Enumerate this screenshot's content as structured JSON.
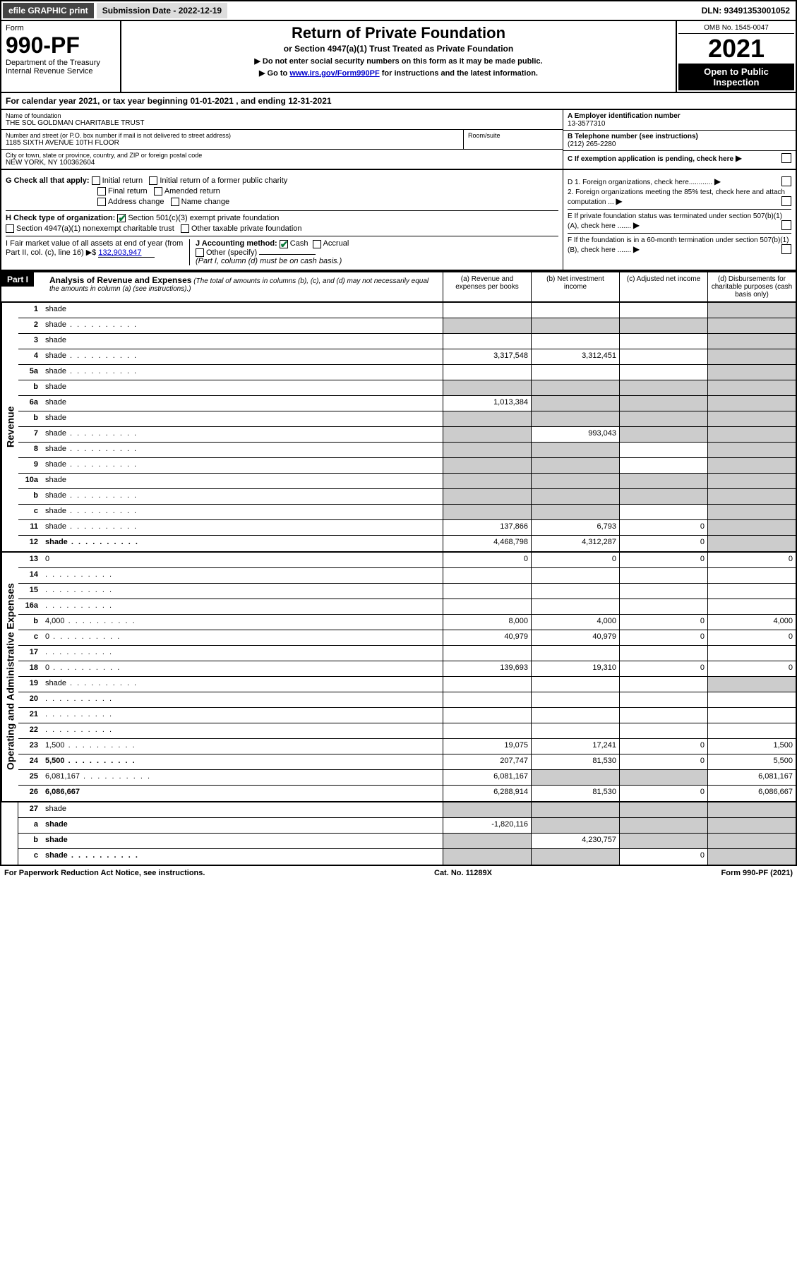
{
  "topbar": {
    "efile": "efile GRAPHIC print",
    "submission_label": "Submission Date - 2022-12-19",
    "dln": "DLN: 93491353001052"
  },
  "header": {
    "form_word": "Form",
    "form_number": "990-PF",
    "dept": "Department of the Treasury",
    "irs": "Internal Revenue Service",
    "title": "Return of Private Foundation",
    "subtitle": "or Section 4947(a)(1) Trust Treated as Private Foundation",
    "note1": "▶ Do not enter social security numbers on this form as it may be made public.",
    "note2_pre": "▶ Go to ",
    "note2_link": "www.irs.gov/Form990PF",
    "note2_post": " for instructions and the latest information.",
    "omb": "OMB No. 1545-0047",
    "year": "2021",
    "open": "Open to Public Inspection"
  },
  "calyear": {
    "text_pre": "For calendar year 2021, or tax year beginning ",
    "begin": "01-01-2021",
    "text_mid": " , and ending ",
    "end": "12-31-2021"
  },
  "info": {
    "name_label": "Name of foundation",
    "name": "THE SOL GOLDMAN CHARITABLE TRUST",
    "addr_label": "Number and street (or P.O. box number if mail is not delivered to street address)",
    "addr": "1185 SIXTH AVENUE 10TH FLOOR",
    "room_label": "Room/suite",
    "city_label": "City or town, state or province, country, and ZIP or foreign postal code",
    "city": "NEW YORK, NY  100362604",
    "ein_label": "A Employer identification number",
    "ein": "13-3577310",
    "phone_label": "B Telephone number (see instructions)",
    "phone": "(212) 265-2280",
    "c_label": "C If exemption application is pending, check here",
    "d1": "D 1. Foreign organizations, check here............",
    "d2": "2. Foreign organizations meeting the 85% test, check here and attach computation ...",
    "e": "E  If private foundation status was terminated under section 507(b)(1)(A), check here .......",
    "f": "F  If the foundation is in a 60-month termination under section 507(b)(1)(B), check here .......",
    "g_label": "G Check all that apply:",
    "g_opts": [
      "Initial return",
      "Initial return of a former public charity",
      "Final return",
      "Amended return",
      "Address change",
      "Name change"
    ],
    "h_label": "H Check type of organization:",
    "h1": "Section 501(c)(3) exempt private foundation",
    "h2": "Section 4947(a)(1) nonexempt charitable trust",
    "h3": "Other taxable private foundation",
    "i_label": "I Fair market value of all assets at end of year (from Part II, col. (c), line 16) ▶$",
    "i_value": "132,903,947",
    "j_label": "J Accounting method:",
    "j_cash": "Cash",
    "j_accrual": "Accrual",
    "j_other": "Other (specify)",
    "j_note": "(Part I, column (d) must be on cash basis.)"
  },
  "part1": {
    "label": "Part I",
    "title": "Analysis of Revenue and Expenses",
    "note": "(The total of amounts in columns (b), (c), and (d) may not necessarily equal the amounts in column (a) (see instructions).)",
    "cols": {
      "a": "(a) Revenue and expenses per books",
      "b": "(b) Net investment income",
      "c": "(c) Adjusted net income",
      "d": "(d) Disbursements for charitable purposes (cash basis only)"
    }
  },
  "side": {
    "revenue": "Revenue",
    "expenses": "Operating and Administrative Expenses"
  },
  "lines": [
    {
      "n": "1",
      "d": "shade",
      "a": "",
      "b": "",
      "c": ""
    },
    {
      "n": "2",
      "d": "shade",
      "a": "shade",
      "b": "shade",
      "c": "shade",
      "dots": true
    },
    {
      "n": "3",
      "d": "shade",
      "a": "",
      "b": "",
      "c": ""
    },
    {
      "n": "4",
      "d": "shade",
      "a": "3,317,548",
      "b": "3,312,451",
      "c": "",
      "dots": true
    },
    {
      "n": "5a",
      "d": "shade",
      "a": "",
      "b": "",
      "c": "",
      "dots": true
    },
    {
      "n": "b",
      "d": "shade",
      "a": "shade",
      "b": "shade",
      "c": "shade"
    },
    {
      "n": "6a",
      "d": "shade",
      "a": "1,013,384",
      "b": "shade",
      "c": "shade"
    },
    {
      "n": "b",
      "d": "shade",
      "a": "shade",
      "b": "shade",
      "c": "shade"
    },
    {
      "n": "7",
      "d": "shade",
      "a": "shade",
      "b": "993,043",
      "c": "shade",
      "dots": true
    },
    {
      "n": "8",
      "d": "shade",
      "a": "shade",
      "b": "shade",
      "c": "",
      "dots": true
    },
    {
      "n": "9",
      "d": "shade",
      "a": "shade",
      "b": "shade",
      "c": "",
      "dots": true
    },
    {
      "n": "10a",
      "d": "shade",
      "a": "shade",
      "b": "shade",
      "c": "shade"
    },
    {
      "n": "b",
      "d": "shade",
      "a": "shade",
      "b": "shade",
      "c": "shade",
      "dots": true
    },
    {
      "n": "c",
      "d": "shade",
      "a": "shade",
      "b": "shade",
      "c": "",
      "dots": true
    },
    {
      "n": "11",
      "d": "shade",
      "a": "137,866",
      "b": "6,793",
      "c": "0",
      "dots": true
    },
    {
      "n": "12",
      "d": "shade",
      "a": "4,468,798",
      "b": "4,312,287",
      "c": "0",
      "bold": true,
      "dots": true
    }
  ],
  "exp_lines": [
    {
      "n": "13",
      "d": "0",
      "a": "0",
      "b": "0",
      "c": "0"
    },
    {
      "n": "14",
      "d": "",
      "a": "",
      "b": "",
      "c": "",
      "dots": true
    },
    {
      "n": "15",
      "d": "",
      "a": "",
      "b": "",
      "c": "",
      "dots": true
    },
    {
      "n": "16a",
      "d": "",
      "a": "",
      "b": "",
      "c": "",
      "dots": true
    },
    {
      "n": "b",
      "d": "4,000",
      "a": "8,000",
      "b": "4,000",
      "c": "0",
      "dots": true
    },
    {
      "n": "c",
      "d": "0",
      "a": "40,979",
      "b": "40,979",
      "c": "0",
      "dots": true
    },
    {
      "n": "17",
      "d": "",
      "a": "",
      "b": "",
      "c": "",
      "dots": true
    },
    {
      "n": "18",
      "d": "0",
      "a": "139,693",
      "b": "19,310",
      "c": "0",
      "dots": true
    },
    {
      "n": "19",
      "d": "shade",
      "a": "",
      "b": "",
      "c": "",
      "dots": true
    },
    {
      "n": "20",
      "d": "",
      "a": "",
      "b": "",
      "c": "",
      "dots": true
    },
    {
      "n": "21",
      "d": "",
      "a": "",
      "b": "",
      "c": "",
      "dots": true
    },
    {
      "n": "22",
      "d": "",
      "a": "",
      "b": "",
      "c": "",
      "dots": true
    },
    {
      "n": "23",
      "d": "1,500",
      "a": "19,075",
      "b": "17,241",
      "c": "0",
      "dots": true
    },
    {
      "n": "24",
      "d": "5,500",
      "a": "207,747",
      "b": "81,530",
      "c": "0",
      "bold": true,
      "dots": true
    },
    {
      "n": "25",
      "d": "6,081,167",
      "a": "6,081,167",
      "b": "shade",
      "c": "shade",
      "dots": true
    },
    {
      "n": "26",
      "d": "6,086,667",
      "a": "6,288,914",
      "b": "81,530",
      "c": "0",
      "bold": true
    }
  ],
  "bottom_lines": [
    {
      "n": "27",
      "d": "shade",
      "a": "shade",
      "b": "shade",
      "c": "shade"
    },
    {
      "n": "a",
      "d": "shade",
      "a": "-1,820,116",
      "b": "shade",
      "c": "shade",
      "bold": true
    },
    {
      "n": "b",
      "d": "shade",
      "a": "shade",
      "b": "4,230,757",
      "c": "shade",
      "bold": true
    },
    {
      "n": "c",
      "d": "shade",
      "a": "shade",
      "b": "shade",
      "c": "0",
      "bold": true,
      "dots": true
    }
  ],
  "footer": {
    "left": "For Paperwork Reduction Act Notice, see instructions.",
    "mid": "Cat. No. 11289X",
    "right": "Form 990-PF (2021)"
  }
}
